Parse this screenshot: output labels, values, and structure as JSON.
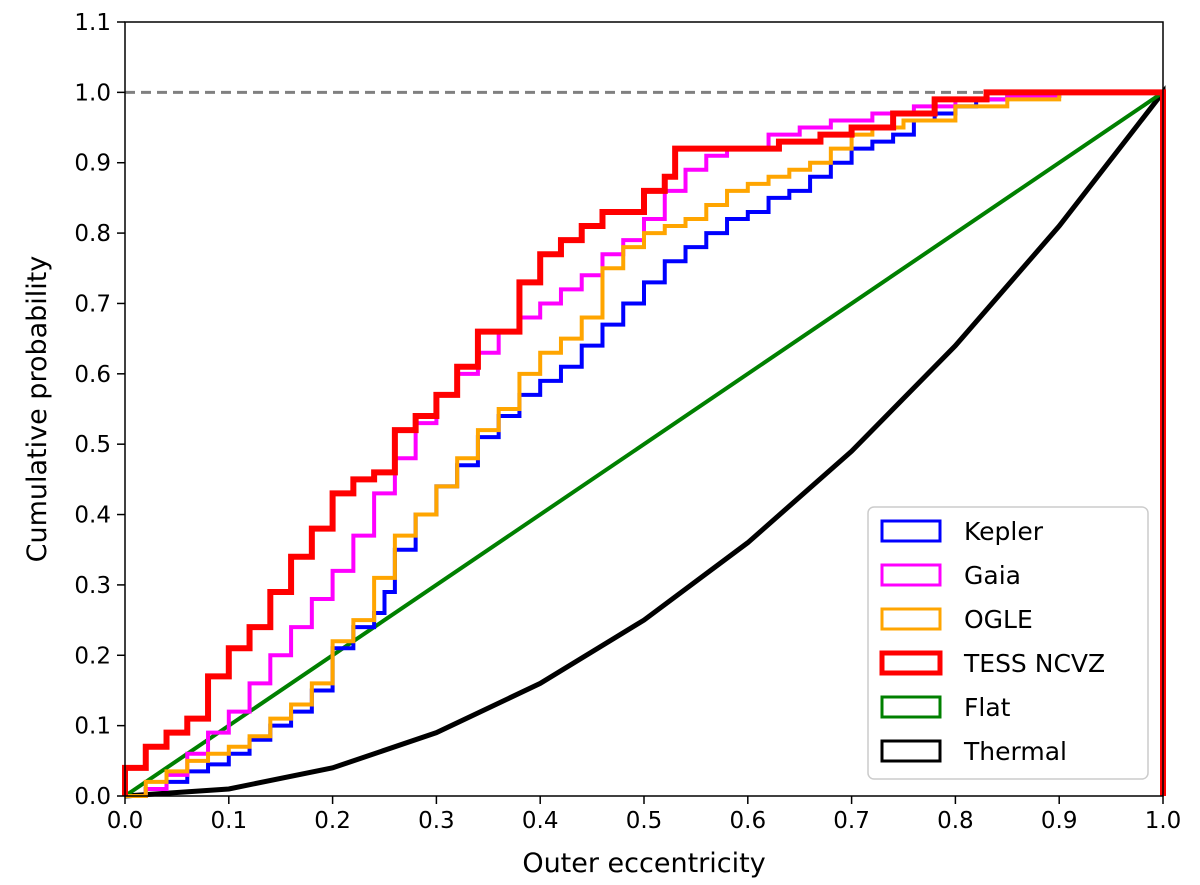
{
  "chart_data": {
    "type": "line",
    "title": "",
    "xlabel": "Outer eccentricity",
    "ylabel": "Cumulative probability",
    "xlim": [
      0.0,
      1.0
    ],
    "ylim": [
      0.0,
      1.1
    ],
    "xticks": [
      "0.0",
      "0.1",
      "0.2",
      "0.3",
      "0.4",
      "0.5",
      "0.6",
      "0.7",
      "0.8",
      "0.9",
      "1.0"
    ],
    "yticks": [
      "0.0",
      "0.1",
      "0.2",
      "0.3",
      "0.4",
      "0.5",
      "0.6",
      "0.7",
      "0.8",
      "0.9",
      "1.0",
      "1.1"
    ],
    "reference_line": {
      "y": 1.0,
      "style": "dashed",
      "color": "#808080"
    },
    "legend_position": "lower-right",
    "series": [
      {
        "name": "Kepler",
        "color": "#0000ff",
        "kind": "step",
        "x": [
          0,
          0.02,
          0.04,
          0.06,
          0.08,
          0.1,
          0.12,
          0.14,
          0.16,
          0.18,
          0.2,
          0.22,
          0.24,
          0.25,
          0.26,
          0.28,
          0.3,
          0.32,
          0.34,
          0.36,
          0.38,
          0.4,
          0.42,
          0.44,
          0.46,
          0.48,
          0.5,
          0.52,
          0.54,
          0.56,
          0.58,
          0.6,
          0.62,
          0.64,
          0.66,
          0.68,
          0.7,
          0.72,
          0.74,
          0.76,
          0.78,
          0.8,
          0.82,
          0.85,
          0.9,
          1.0
        ],
        "values": [
          0,
          0.01,
          0.02,
          0.035,
          0.045,
          0.06,
          0.08,
          0.1,
          0.12,
          0.15,
          0.21,
          0.24,
          0.26,
          0.29,
          0.35,
          0.4,
          0.44,
          0.47,
          0.51,
          0.54,
          0.57,
          0.59,
          0.61,
          0.64,
          0.67,
          0.7,
          0.73,
          0.76,
          0.78,
          0.8,
          0.82,
          0.83,
          0.85,
          0.86,
          0.88,
          0.9,
          0.92,
          0.93,
          0.94,
          0.96,
          0.97,
          0.98,
          0.99,
          0.995,
          1.0,
          1.0
        ]
      },
      {
        "name": "Gaia",
        "color": "#ff00ff",
        "kind": "step",
        "x": [
          0,
          0.02,
          0.04,
          0.06,
          0.08,
          0.1,
          0.12,
          0.14,
          0.16,
          0.18,
          0.2,
          0.22,
          0.24,
          0.26,
          0.28,
          0.3,
          0.32,
          0.34,
          0.36,
          0.38,
          0.4,
          0.42,
          0.44,
          0.46,
          0.48,
          0.5,
          0.52,
          0.54,
          0.56,
          0.58,
          0.6,
          0.62,
          0.65,
          0.68,
          0.72,
          0.76,
          0.8,
          0.85,
          0.9,
          1.0
        ],
        "values": [
          0,
          0.01,
          0.03,
          0.06,
          0.09,
          0.12,
          0.16,
          0.2,
          0.24,
          0.28,
          0.32,
          0.37,
          0.43,
          0.48,
          0.53,
          0.57,
          0.6,
          0.63,
          0.66,
          0.68,
          0.7,
          0.72,
          0.74,
          0.77,
          0.79,
          0.82,
          0.86,
          0.89,
          0.91,
          0.92,
          0.92,
          0.94,
          0.95,
          0.96,
          0.97,
          0.98,
          0.99,
          0.995,
          1.0,
          1.0
        ]
      },
      {
        "name": "OGLE",
        "color": "#ffa500",
        "kind": "step",
        "x": [
          0,
          0.02,
          0.04,
          0.06,
          0.08,
          0.1,
          0.12,
          0.14,
          0.16,
          0.18,
          0.2,
          0.22,
          0.24,
          0.26,
          0.28,
          0.3,
          0.32,
          0.34,
          0.36,
          0.38,
          0.4,
          0.42,
          0.44,
          0.46,
          0.48,
          0.5,
          0.52,
          0.54,
          0.56,
          0.58,
          0.6,
          0.62,
          0.64,
          0.66,
          0.68,
          0.7,
          0.72,
          0.75,
          0.8,
          0.85,
          0.9,
          1.0
        ],
        "values": [
          0,
          0.02,
          0.035,
          0.05,
          0.06,
          0.07,
          0.085,
          0.11,
          0.13,
          0.16,
          0.22,
          0.25,
          0.31,
          0.37,
          0.4,
          0.44,
          0.48,
          0.52,
          0.55,
          0.6,
          0.63,
          0.65,
          0.68,
          0.75,
          0.78,
          0.8,
          0.81,
          0.82,
          0.84,
          0.86,
          0.87,
          0.88,
          0.89,
          0.9,
          0.92,
          0.94,
          0.95,
          0.96,
          0.98,
          0.99,
          1.0,
          1.0
        ]
      },
      {
        "name": "TESS NCVZ",
        "color": "#ff0000",
        "kind": "step",
        "x": [
          0,
          0.02,
          0.04,
          0.06,
          0.08,
          0.1,
          0.12,
          0.14,
          0.16,
          0.18,
          0.2,
          0.22,
          0.24,
          0.26,
          0.28,
          0.3,
          0.32,
          0.34,
          0.36,
          0.38,
          0.4,
          0.42,
          0.44,
          0.46,
          0.48,
          0.5,
          0.52,
          0.53,
          0.56,
          0.6,
          0.63,
          0.67,
          0.7,
          0.74,
          0.78,
          0.83,
          0.9,
          1.0
        ],
        "values": [
          0.04,
          0.07,
          0.09,
          0.11,
          0.17,
          0.21,
          0.24,
          0.29,
          0.34,
          0.38,
          0.43,
          0.45,
          0.46,
          0.52,
          0.54,
          0.57,
          0.61,
          0.66,
          0.66,
          0.73,
          0.77,
          0.79,
          0.81,
          0.83,
          0.83,
          0.86,
          0.88,
          0.92,
          0.92,
          0.92,
          0.93,
          0.94,
          0.95,
          0.97,
          0.99,
          1.0,
          1.0,
          1.0
        ]
      },
      {
        "name": "Flat",
        "color": "#008000",
        "kind": "line",
        "x": [
          0,
          1.0
        ],
        "values": [
          0,
          1.0
        ]
      },
      {
        "name": "Thermal",
        "color": "#000000",
        "kind": "line",
        "x": [
          0,
          0.1,
          0.2,
          0.3,
          0.4,
          0.5,
          0.6,
          0.7,
          0.8,
          0.9,
          1.0
        ],
        "values": [
          0,
          0.01,
          0.04,
          0.09,
          0.16,
          0.25,
          0.36,
          0.49,
          0.64,
          0.81,
          1.0
        ]
      }
    ]
  }
}
